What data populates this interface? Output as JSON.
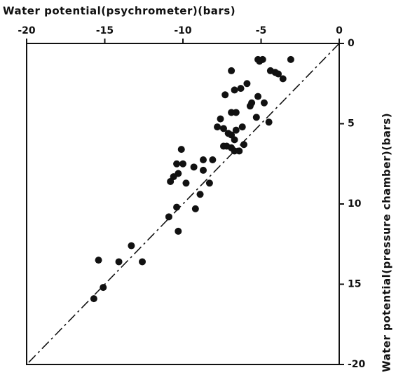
{
  "chart_data": {
    "type": "scatter",
    "title": "Water potential(psychrometer)(bars)",
    "y_label": "Water potential(pressure chamber)(bars)",
    "x": [
      -3.1,
      -4.9,
      -5.1,
      -5.2,
      -5.1,
      -6.9,
      -4.4,
      -4.1,
      -3.9,
      -3.6,
      -5.9,
      -6.3,
      -6.7,
      -7.3,
      -5.2,
      -5.6,
      -5.7,
      -4.8,
      -6.9,
      -6.6,
      -5.3,
      -7.6,
      -4.5,
      -6.2,
      -7.4,
      -7.8,
      -6.6,
      -7.1,
      -6.9,
      -6.7,
      -7.2,
      -7.4,
      -6.9,
      -6.7,
      -6.4,
      -6.1,
      -10.1,
      -10.4,
      -10.0,
      -8.7,
      -8.1,
      -9.3,
      -10.3,
      -10.6,
      -8.7,
      -9.8,
      -10.8,
      -8.3,
      -8.9,
      -10.4,
      -9.2,
      -10.9,
      -10.3,
      -13.3,
      -15.4,
      -14.1,
      -12.6,
      -15.1,
      -15.7
    ],
    "series": [
      {
        "name": null,
        "color": "#111111",
        "values": [
          1.0,
          1.0,
          1.1,
          1.0,
          1.1,
          1.7,
          1.7,
          1.8,
          1.9,
          2.2,
          2.5,
          2.8,
          2.9,
          3.2,
          3.3,
          3.7,
          3.9,
          3.7,
          4.3,
          4.3,
          4.6,
          4.7,
          4.9,
          5.2,
          5.3,
          5.2,
          5.4,
          5.6,
          5.7,
          6.0,
          6.4,
          6.4,
          6.5,
          6.7,
          6.7,
          6.3,
          6.6,
          7.5,
          7.5,
          7.25,
          7.25,
          7.7,
          8.1,
          8.3,
          7.9,
          8.7,
          8.6,
          8.7,
          9.4,
          10.2,
          10.3,
          10.8,
          11.7,
          12.6,
          13.5,
          13.6,
          13.6,
          15.2,
          15.9
        ]
      }
    ],
    "xlim": [
      -20,
      0
    ],
    "xticks": [
      -20,
      -15,
      -10,
      -5,
      0
    ],
    "ylim": [
      0,
      20
    ],
    "yticks": [
      0,
      5,
      10,
      15,
      {
        "value": 20,
        "label": "-20"
      }
    ],
    "reference_line": "1:1"
  }
}
